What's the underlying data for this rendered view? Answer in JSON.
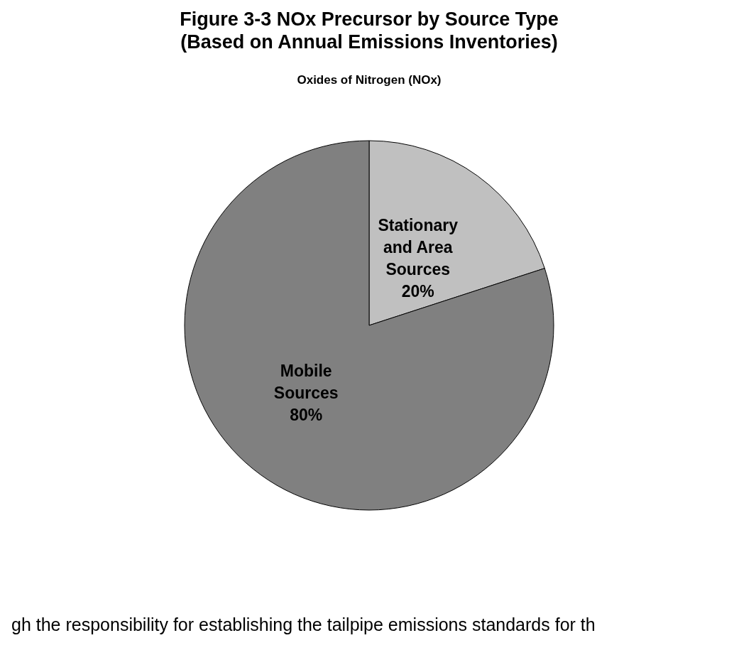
{
  "chart_data": {
    "type": "pie",
    "title": "Figure 3-3 NOx Precursor by Source Type\n(Based on Annual Emissions Inventories)",
    "subtitle": "Oxides of Nitrogen (NOx)",
    "categories": [
      "Stationary and Area Sources",
      "Mobile Sources"
    ],
    "values": [
      20,
      80
    ],
    "colors": [
      "#c0c0c0",
      "#808080"
    ],
    "value_labels": [
      "20%",
      "80%"
    ],
    "annotations": [
      "gh the responsibility for establishing the tailpipe emissions standards for th"
    ]
  }
}
